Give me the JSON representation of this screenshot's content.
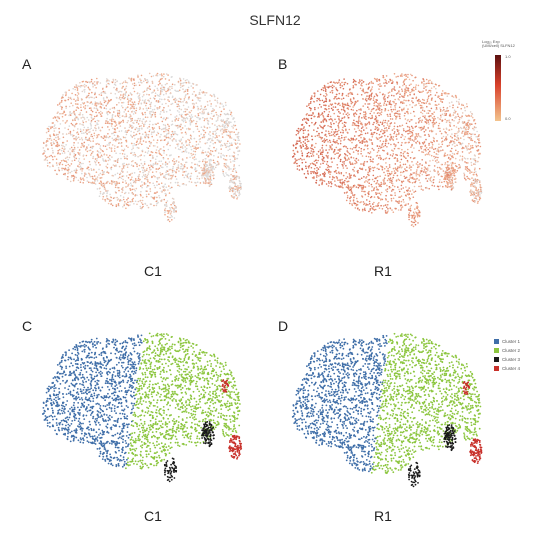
{
  "figure": {
    "title": "SLFN12"
  },
  "chart_data": [
    {
      "type": "scatter",
      "panel": "A",
      "caption": "C1",
      "value_scale": "Log₁₀ (SLFN12 expression)",
      "intensity_mean": 0.12,
      "intensity_max": 0.3
    },
    {
      "type": "scatter",
      "panel": "B",
      "caption": "R1",
      "intensity_mean": 0.35,
      "intensity_max": 1.0,
      "colorbar": {
        "title_lines": [
          "Log₁₀ Exp",
          "(UMI/cell) SLFN12"
        ],
        "max_label": "1.0",
        "min_label": "0.0",
        "color_high": "#5c1010",
        "color_mid": "#d8402a",
        "color_low": "#f3c48e"
      }
    },
    {
      "type": "scatter",
      "panel": "C",
      "caption": "C1",
      "clusters": [
        "Cluster 1",
        "Cluster 2",
        "Cluster 3",
        "Cluster 4"
      ]
    },
    {
      "type": "scatter",
      "panel": "D",
      "caption": "R1",
      "legend": {
        "entries": [
          {
            "name": "Cluster 1",
            "color": "#3f6ea8"
          },
          {
            "name": "Cluster 2",
            "color": "#8cc63f"
          },
          {
            "name": "Cluster 3",
            "color": "#1a1a1a"
          },
          {
            "name": "Cluster 4",
            "color": "#c8302a"
          }
        ]
      }
    }
  ]
}
